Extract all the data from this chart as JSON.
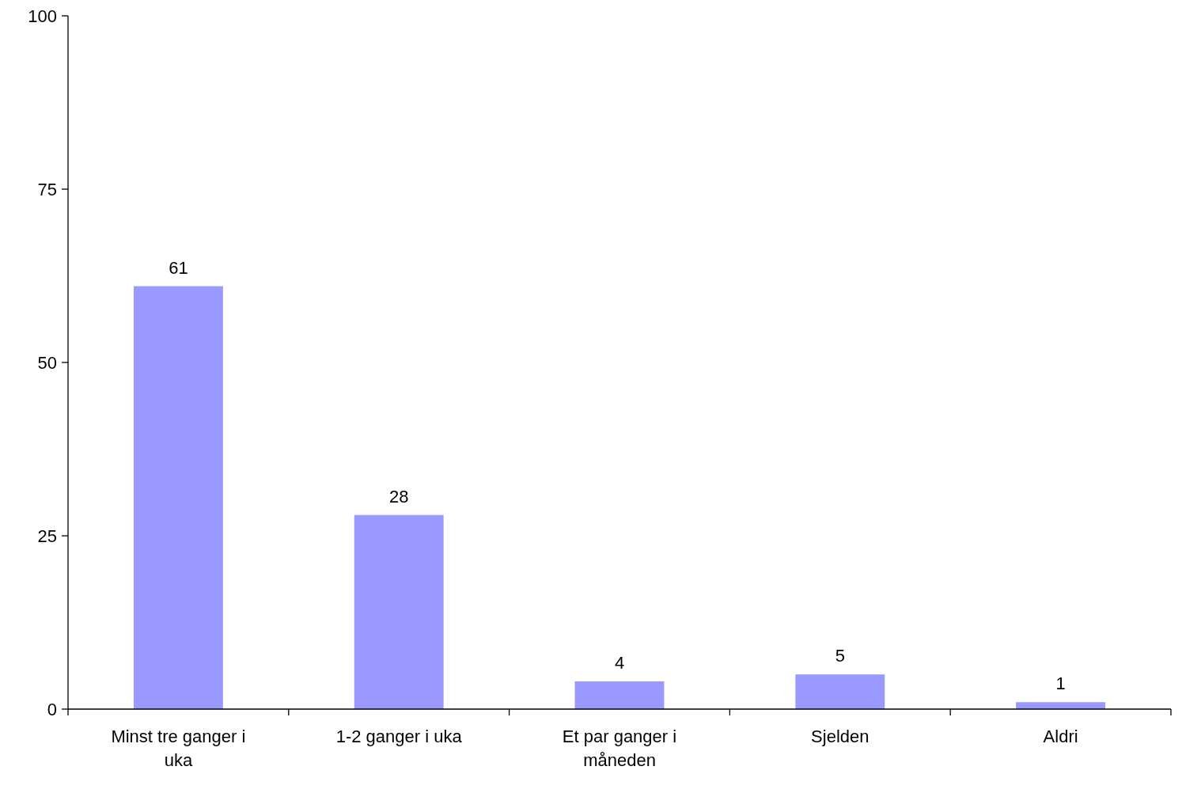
{
  "chart_data": {
    "type": "bar",
    "categories": [
      "Minst tre ganger i uka",
      "1-2 ganger i uka",
      "Et par ganger i måneden",
      "Sjelden",
      "Aldri"
    ],
    "values": [
      61,
      28,
      4,
      5,
      1
    ],
    "color": "#9999ff",
    "ylim": [
      0,
      100
    ],
    "yticks": [
      0,
      25,
      50,
      75,
      100
    ],
    "data_labels": true,
    "grid": false
  }
}
